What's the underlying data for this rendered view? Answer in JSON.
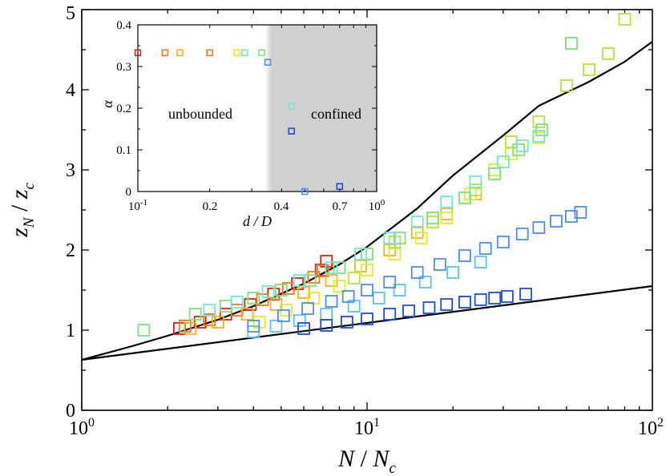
{
  "chart_data": [
    {
      "type": "scatter",
      "xscale": "log",
      "xlim": [
        1,
        100
      ],
      "ylim": [
        0,
        5
      ],
      "x_ticks": [
        "10^0",
        "10^1",
        "10^2"
      ],
      "y_ticks": [
        "0",
        "1",
        "2",
        "3",
        "4",
        "5"
      ],
      "xlabel": "N / N_c",
      "ylabel": "z_N / z_c",
      "fit_curves": [
        {
          "name": "power-law fit (upper)",
          "x": [
            1,
            1.5,
            2,
            3,
            4,
            6,
            8,
            10,
            15,
            20,
            30,
            40,
            60,
            80,
            100
          ],
          "y": [
            0.63,
            0.8,
            0.93,
            1.13,
            1.3,
            1.58,
            1.82,
            2.04,
            2.52,
            2.93,
            3.43,
            3.8,
            4.1,
            4.35,
            4.6
          ]
        },
        {
          "name": "linear-log fit (lower)",
          "x": [
            1,
            100
          ],
          "y": [
            0.63,
            1.55
          ]
        }
      ],
      "series": [
        {
          "name": "red",
          "color": "#d62418",
          "x": [
            2.2,
            2.6,
            3.2,
            3.9,
            4.7,
            5.7,
            6.9,
            7.2
          ],
          "y": [
            1.02,
            1.1,
            1.2,
            1.32,
            1.45,
            1.58,
            1.75,
            1.86
          ]
        },
        {
          "name": "orange",
          "color": "#f07a1a",
          "x": [
            2.3,
            2.8,
            3.5,
            4.3,
            5.3,
            6.5,
            7.0
          ],
          "y": [
            1.05,
            1.13,
            1.25,
            1.38,
            1.52,
            1.66,
            1.74
          ]
        },
        {
          "name": "amber",
          "color": "#f6b21c",
          "x": [
            2.4,
            3.0,
            3.8,
            4.8,
            6.0,
            7.5,
            9.5,
            12,
            15,
            19,
            24
          ],
          "y": [
            1.02,
            1.1,
            1.2,
            1.32,
            1.47,
            1.62,
            1.8,
            2.0,
            2.22,
            2.45,
            2.7
          ]
        },
        {
          "name": "yellow",
          "color": "#e6ea2a",
          "x": [
            4.2,
            5.2,
            6.5,
            8,
            10,
            12.5,
            15.5,
            19,
            23,
            28,
            32,
            40
          ],
          "y": [
            1.1,
            1.25,
            1.4,
            1.55,
            1.75,
            1.95,
            2.15,
            2.4,
            2.7,
            3.0,
            3.2,
            3.4
          ]
        },
        {
          "name": "yellow-green",
          "color": "#b4e33a",
          "x": [
            9,
            12.5,
            17,
            24,
            32,
            40,
            50,
            60,
            70,
            80
          ],
          "y": [
            1.65,
            2.1,
            2.35,
            2.75,
            3.35,
            3.6,
            4.05,
            4.25,
            4.45,
            4.88
          ]
        },
        {
          "name": "light-green",
          "color": "#7fe07a",
          "x": [
            1.65,
            2.5,
            3.2,
            4.0,
            5.0,
            6.3,
            8,
            10,
            13,
            17,
            22,
            28,
            34,
            41,
            52
          ],
          "y": [
            1.0,
            1.2,
            1.3,
            1.4,
            1.5,
            1.62,
            1.78,
            1.95,
            2.15,
            2.4,
            2.65,
            2.95,
            3.25,
            3.5,
            4.58
          ]
        },
        {
          "name": "cyan",
          "color": "#72e8d2",
          "x": [
            2.8,
            3.5,
            4.5,
            5.8,
            7.5,
            9.5,
            12,
            15,
            19,
            24,
            30,
            35,
            40
          ],
          "y": [
            1.25,
            1.35,
            1.48,
            1.62,
            1.78,
            1.95,
            2.15,
            2.35,
            2.6,
            2.85,
            3.1,
            3.3,
            3.42
          ]
        },
        {
          "name": "sky-blue",
          "color": "#5bc3ee",
          "x": [
            4.0,
            4.8,
            5.8,
            7.2,
            9,
            11,
            13,
            16,
            20,
            25
          ],
          "y": [
            0.98,
            1.05,
            1.12,
            1.2,
            1.3,
            1.4,
            1.5,
            1.6,
            1.72,
            1.85
          ]
        },
        {
          "name": "blue",
          "color": "#4c8fe6",
          "x": [
            4.0,
            5.1,
            6.2,
            7.5,
            8.6,
            10,
            12,
            15,
            18,
            22,
            26,
            30,
            35,
            40,
            46,
            52,
            56
          ],
          "y": [
            1.05,
            1.18,
            1.27,
            1.36,
            1.42,
            1.5,
            1.6,
            1.72,
            1.82,
            1.93,
            2.02,
            2.1,
            2.2,
            2.28,
            2.36,
            2.42,
            2.47
          ]
        },
        {
          "name": "dark-blue",
          "color": "#1a4fd8",
          "x": [
            6.0,
            7.2,
            8.5,
            10,
            12,
            14,
            16.5,
            19,
            22,
            25,
            28,
            31,
            36
          ],
          "y": [
            1.02,
            1.06,
            1.1,
            1.14,
            1.2,
            1.24,
            1.28,
            1.32,
            1.35,
            1.38,
            1.4,
            1.42,
            1.45
          ]
        }
      ]
    },
    {
      "type": "scatter",
      "inset": true,
      "xscale": "log",
      "xlim": [
        0.1,
        1
      ],
      "ylim": [
        0,
        0.4
      ],
      "x_ticks": [
        "10^-1",
        "0.2",
        "0.4",
        "0.7",
        "10^0"
      ],
      "y_ticks": [
        "0",
        "0.1",
        "0.2",
        "0.3",
        "0.4"
      ],
      "xlabel": "d / D",
      "ylabel": "α",
      "regions": {
        "left": "unbounded",
        "right": "confined",
        "confined_start": 0.34,
        "shade_from": 0.4
      },
      "points": [
        {
          "x": 0.1,
          "y": 0.333,
          "color": "#d62418"
        },
        {
          "x": 0.13,
          "y": 0.333,
          "color": "#f07a1a"
        },
        {
          "x": 0.15,
          "y": 0.333,
          "color": "#f6b21c"
        },
        {
          "x": 0.2,
          "y": 0.333,
          "color": "#f07a1a"
        },
        {
          "x": 0.26,
          "y": 0.333,
          "color": "#e6ea2a"
        },
        {
          "x": 0.28,
          "y": 0.333,
          "color": "#72e8d2"
        },
        {
          "x": 0.33,
          "y": 0.333,
          "color": "#7fe07a"
        },
        {
          "x": 0.35,
          "y": 0.31,
          "color": "#4c8fe6"
        },
        {
          "x": 0.44,
          "y": 0.205,
          "color": "#72e8d2"
        },
        {
          "x": 0.44,
          "y": 0.145,
          "color": "#1a4fd8"
        },
        {
          "x": 0.5,
          "y": 0.0,
          "color": "#4c8fe6"
        },
        {
          "x": 0.7,
          "y": 0.012,
          "color": "#1a4fd8"
        }
      ]
    }
  ]
}
